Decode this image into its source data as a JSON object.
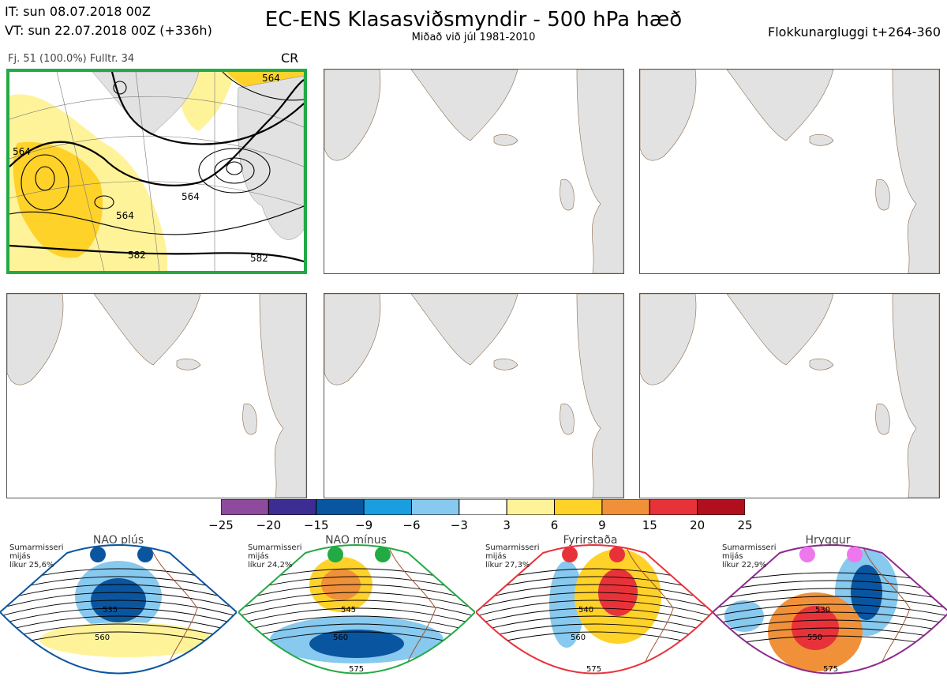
{
  "header": {
    "it": "IT: sun 08.07.2018 00Z",
    "vt": "VT: sun 22.07.2018 00Z  (+336h)",
    "title": "EC-ENS Klasasviðsmyndir - 500 hPa hæð",
    "subtitle": "Miðað við júl 1981-2010",
    "window": "Flokkunargluggi t+264-360"
  },
  "panel_main": {
    "info": "Fj. 51 (100.0%)   Fulltr. 34",
    "code": "CR",
    "contour_labels": [
      "564",
      "582",
      "564",
      "564",
      "564",
      "582"
    ],
    "border_color": "#22aa44"
  },
  "colorbar": {
    "ticks": [
      "−25",
      "−20",
      "−15",
      "−9",
      "−6",
      "−3",
      "3",
      "6",
      "9",
      "15",
      "20",
      "25"
    ],
    "colors": [
      "#8e4a9c",
      "#3b2d91",
      "#0a55a0",
      "#1a9ee0",
      "#87c9ef",
      "#ffffff",
      "#fff39a",
      "#ffd22a",
      "#f0913a",
      "#e8323a",
      "#b0101e"
    ]
  },
  "regimes": [
    {
      "name": "NAO plús",
      "note_lines": [
        "Sumarmisseri",
        "mijás",
        "líkur 25,6%"
      ],
      "color": "#0a55a0",
      "labels": [
        "535",
        "560"
      ]
    },
    {
      "name": "NAO mínus",
      "note_lines": [
        "Sumarmisseri",
        "mijás",
        "líkur 24,2%"
      ],
      "color": "#22aa44",
      "labels": [
        "545",
        "560",
        "575"
      ]
    },
    {
      "name": "Fyrirstaða",
      "note_lines": [
        "Sumarmisseri",
        "mijás",
        "líkur 27,3%"
      ],
      "color": "#e8323a",
      "labels": [
        "540",
        "560",
        "575"
      ]
    },
    {
      "name": "Hryggur",
      "note_lines": [
        "Sumarmisseri",
        "mijás",
        "líkur 22,9%"
      ],
      "color": "#8e2a8e",
      "dot_color": "#ee77ee",
      "labels": [
        "530",
        "550",
        "575"
      ]
    }
  ]
}
